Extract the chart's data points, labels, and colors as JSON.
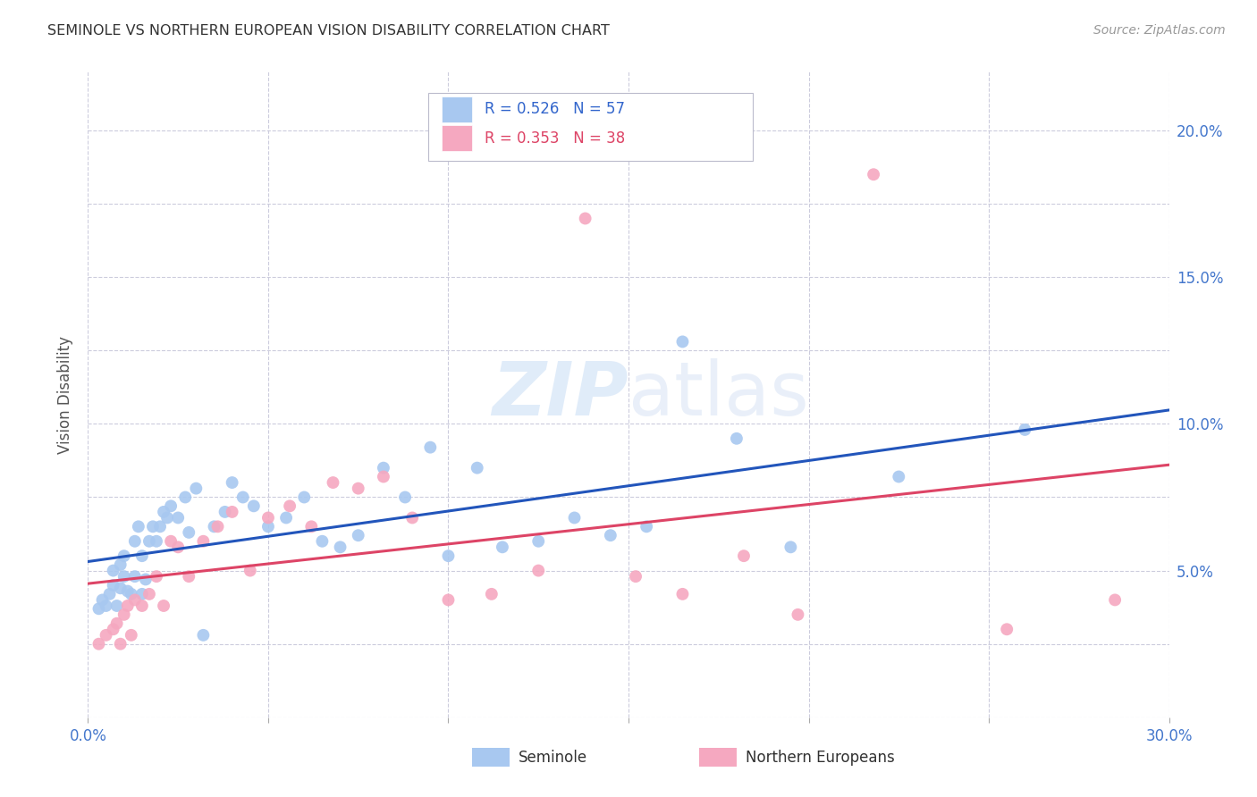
{
  "title": "SEMINOLE VS NORTHERN EUROPEAN VISION DISABILITY CORRELATION CHART",
  "source": "Source: ZipAtlas.com",
  "ylabel": "Vision Disability",
  "xlim": [
    0.0,
    0.3
  ],
  "ylim": [
    0.0,
    0.22
  ],
  "background_color": "#ffffff",
  "seminole_color": "#a8c8f0",
  "northern_color": "#f5a8c0",
  "trend_blue": "#2255bb",
  "trend_pink": "#dd4466",
  "seminole_R": 0.526,
  "seminole_N": 57,
  "northern_R": 0.353,
  "northern_N": 38,
  "seminole_x": [
    0.003,
    0.004,
    0.005,
    0.006,
    0.007,
    0.007,
    0.008,
    0.009,
    0.009,
    0.01,
    0.01,
    0.011,
    0.012,
    0.013,
    0.013,
    0.014,
    0.015,
    0.015,
    0.016,
    0.017,
    0.018,
    0.019,
    0.02,
    0.021,
    0.022,
    0.023,
    0.025,
    0.027,
    0.028,
    0.03,
    0.032,
    0.035,
    0.038,
    0.04,
    0.043,
    0.046,
    0.05,
    0.055,
    0.06,
    0.065,
    0.07,
    0.075,
    0.082,
    0.088,
    0.095,
    0.1,
    0.108,
    0.115,
    0.125,
    0.135,
    0.145,
    0.155,
    0.165,
    0.18,
    0.195,
    0.225,
    0.26
  ],
  "seminole_y": [
    0.037,
    0.04,
    0.038,
    0.042,
    0.045,
    0.05,
    0.038,
    0.044,
    0.052,
    0.048,
    0.055,
    0.043,
    0.042,
    0.048,
    0.06,
    0.065,
    0.042,
    0.055,
    0.047,
    0.06,
    0.065,
    0.06,
    0.065,
    0.07,
    0.068,
    0.072,
    0.068,
    0.075,
    0.063,
    0.078,
    0.028,
    0.065,
    0.07,
    0.08,
    0.075,
    0.072,
    0.065,
    0.068,
    0.075,
    0.06,
    0.058,
    0.062,
    0.085,
    0.075,
    0.092,
    0.055,
    0.085,
    0.058,
    0.06,
    0.068,
    0.062,
    0.065,
    0.128,
    0.095,
    0.058,
    0.082,
    0.098
  ],
  "northern_x": [
    0.003,
    0.005,
    0.007,
    0.008,
    0.009,
    0.01,
    0.011,
    0.012,
    0.013,
    0.015,
    0.017,
    0.019,
    0.021,
    0.023,
    0.025,
    0.028,
    0.032,
    0.036,
    0.04,
    0.045,
    0.05,
    0.056,
    0.062,
    0.068,
    0.075,
    0.082,
    0.09,
    0.1,
    0.112,
    0.125,
    0.138,
    0.152,
    0.165,
    0.182,
    0.197,
    0.218,
    0.255,
    0.285
  ],
  "northern_y": [
    0.025,
    0.028,
    0.03,
    0.032,
    0.025,
    0.035,
    0.038,
    0.028,
    0.04,
    0.038,
    0.042,
    0.048,
    0.038,
    0.06,
    0.058,
    0.048,
    0.06,
    0.065,
    0.07,
    0.05,
    0.068,
    0.072,
    0.065,
    0.08,
    0.078,
    0.082,
    0.068,
    0.04,
    0.042,
    0.05,
    0.17,
    0.048,
    0.042,
    0.055,
    0.035,
    0.185,
    0.03,
    0.04
  ]
}
